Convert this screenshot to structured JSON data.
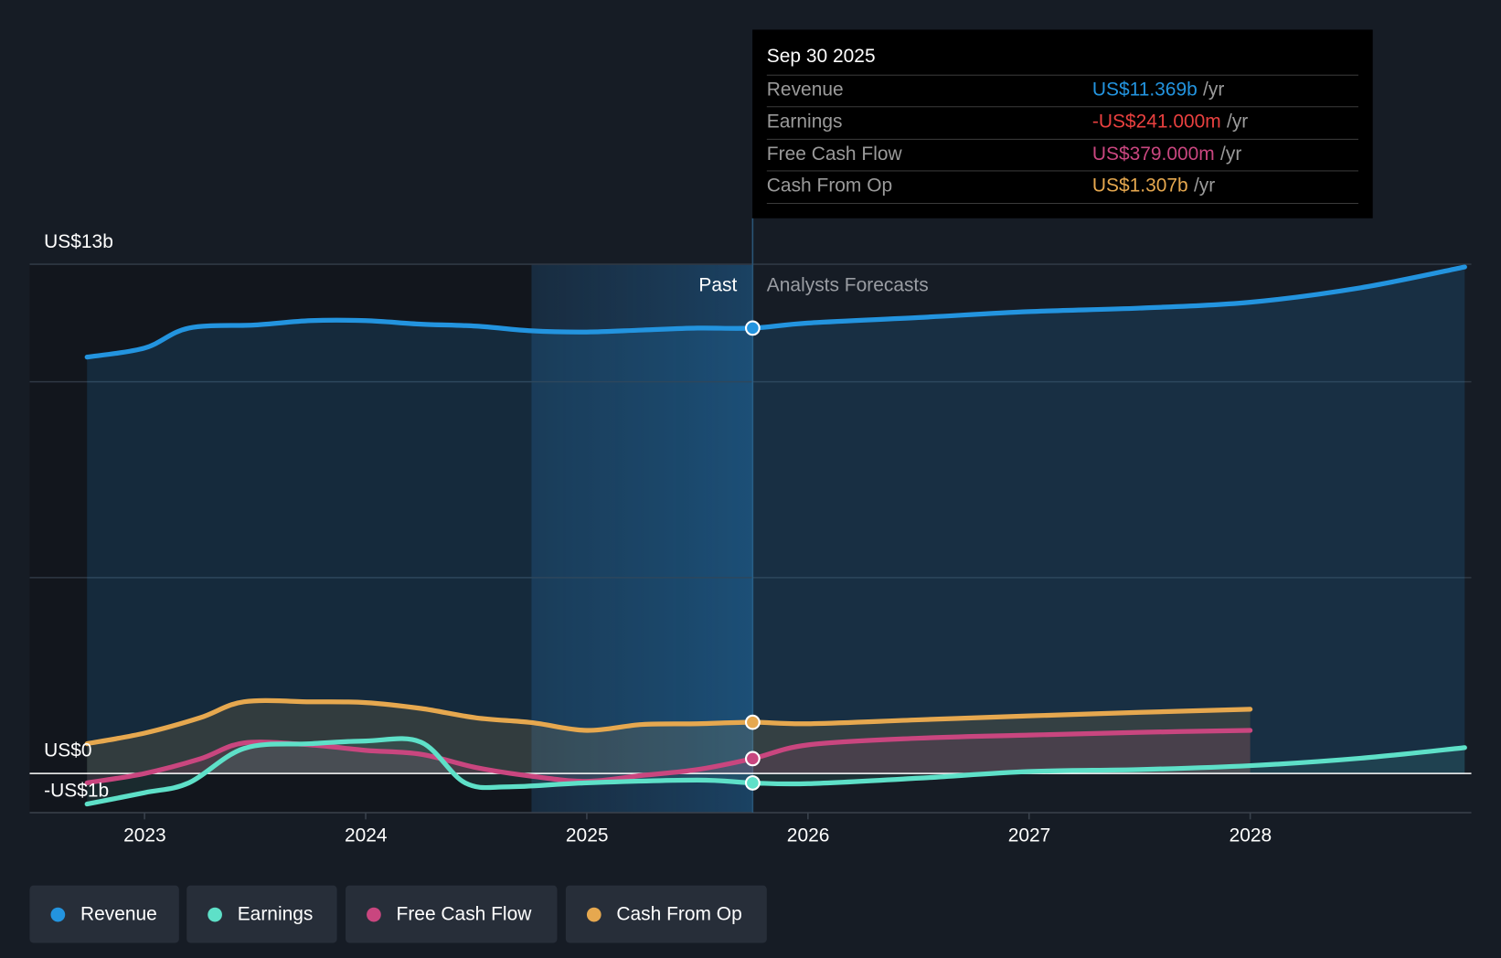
{
  "tooltip": {
    "date": "Sep 30 2025",
    "unit": "/yr",
    "rows": [
      {
        "label": "Revenue",
        "value": "US$11.369b",
        "color": "#2394df"
      },
      {
        "label": "Earnings",
        "value": "-US$241.000m",
        "color": "#e8403f"
      },
      {
        "label": "Free Cash Flow",
        "value": "US$379.000m",
        "color": "#c9467f"
      },
      {
        "label": "Cash From Op",
        "value": "US$1.307b",
        "color": "#e6a84f"
      }
    ]
  },
  "labels": {
    "past": "Past",
    "forecast": "Analysts Forecasts"
  },
  "legend": [
    {
      "label": "Revenue",
      "color": "#2394df"
    },
    {
      "label": "Earnings",
      "color": "#5ee0c8"
    },
    {
      "label": "Free Cash Flow",
      "color": "#c9467f"
    },
    {
      "label": "Cash From Op",
      "color": "#e6a84f"
    }
  ],
  "chart_data": {
    "type": "line",
    "ylabel_ticks": [
      {
        "value": 13,
        "label": "US$13b"
      },
      {
        "value": 0,
        "label": "US$0"
      },
      {
        "value": -1,
        "label": "-US$1b"
      }
    ],
    "ylim": [
      -1,
      13
    ],
    "xlim": [
      2022.48,
      2028.97
    ],
    "x_ticks": [
      "2023",
      "2024",
      "2025",
      "2026",
      "2027",
      "2028"
    ],
    "past_highlight_start": 2024.75,
    "forecast_start": 2025.75,
    "units": "US$ billions",
    "series": [
      {
        "name": "Revenue",
        "color": "#2394df",
        "x": [
          2022.74,
          2023.0,
          2023.2,
          2023.5,
          2023.75,
          2024.0,
          2024.25,
          2024.5,
          2024.75,
          2025.0,
          2025.25,
          2025.5,
          2025.75,
          2026.0,
          2026.5,
          2027.0,
          2027.5,
          2028.0,
          2028.5,
          2028.97
        ],
        "y": [
          10.63,
          10.86,
          11.37,
          11.45,
          11.56,
          11.56,
          11.47,
          11.42,
          11.3,
          11.27,
          11.32,
          11.37,
          11.37,
          11.5,
          11.64,
          11.79,
          11.88,
          12.03,
          12.4,
          12.93
        ]
      },
      {
        "name": "Earnings",
        "color": "#5ee0c8",
        "x": [
          2022.74,
          2023.0,
          2023.2,
          2023.45,
          2023.75,
          2024.0,
          2024.25,
          2024.45,
          2024.65,
          2025.0,
          2025.5,
          2025.75,
          2026.0,
          2026.5,
          2027.0,
          2027.5,
          2028.0,
          2028.5,
          2028.97
        ],
        "y": [
          -0.78,
          -0.49,
          -0.24,
          0.64,
          0.76,
          0.83,
          0.8,
          -0.24,
          -0.34,
          -0.24,
          -0.17,
          -0.241,
          -0.26,
          -0.12,
          0.05,
          0.1,
          0.2,
          0.39,
          0.66
        ]
      },
      {
        "name": "Free Cash Flow",
        "color": "#c9467f",
        "x": [
          2022.74,
          2023.0,
          2023.25,
          2023.45,
          2023.75,
          2024.0,
          2024.25,
          2024.5,
          2024.75,
          2025.0,
          2025.25,
          2025.5,
          2025.75,
          2026.0,
          2026.5,
          2027.0,
          2027.5,
          2028.0
        ],
        "y": [
          -0.24,
          0,
          0.37,
          0.78,
          0.73,
          0.59,
          0.49,
          0.15,
          -0.07,
          -0.2,
          -0.05,
          0.1,
          0.379,
          0.73,
          0.9,
          0.98,
          1.05,
          1.1
        ]
      },
      {
        "name": "Cash From Op",
        "color": "#e6a84f",
        "x": [
          2022.74,
          2023.0,
          2023.25,
          2023.45,
          2023.75,
          2024.0,
          2024.25,
          2024.5,
          2024.75,
          2025.0,
          2025.25,
          2025.5,
          2025.75,
          2026.0,
          2026.5,
          2027.0,
          2027.5,
          2028.0
        ],
        "y": [
          0.76,
          1.03,
          1.42,
          1.83,
          1.83,
          1.81,
          1.66,
          1.42,
          1.3,
          1.1,
          1.25,
          1.27,
          1.307,
          1.27,
          1.37,
          1.47,
          1.56,
          1.64
        ]
      }
    ]
  }
}
